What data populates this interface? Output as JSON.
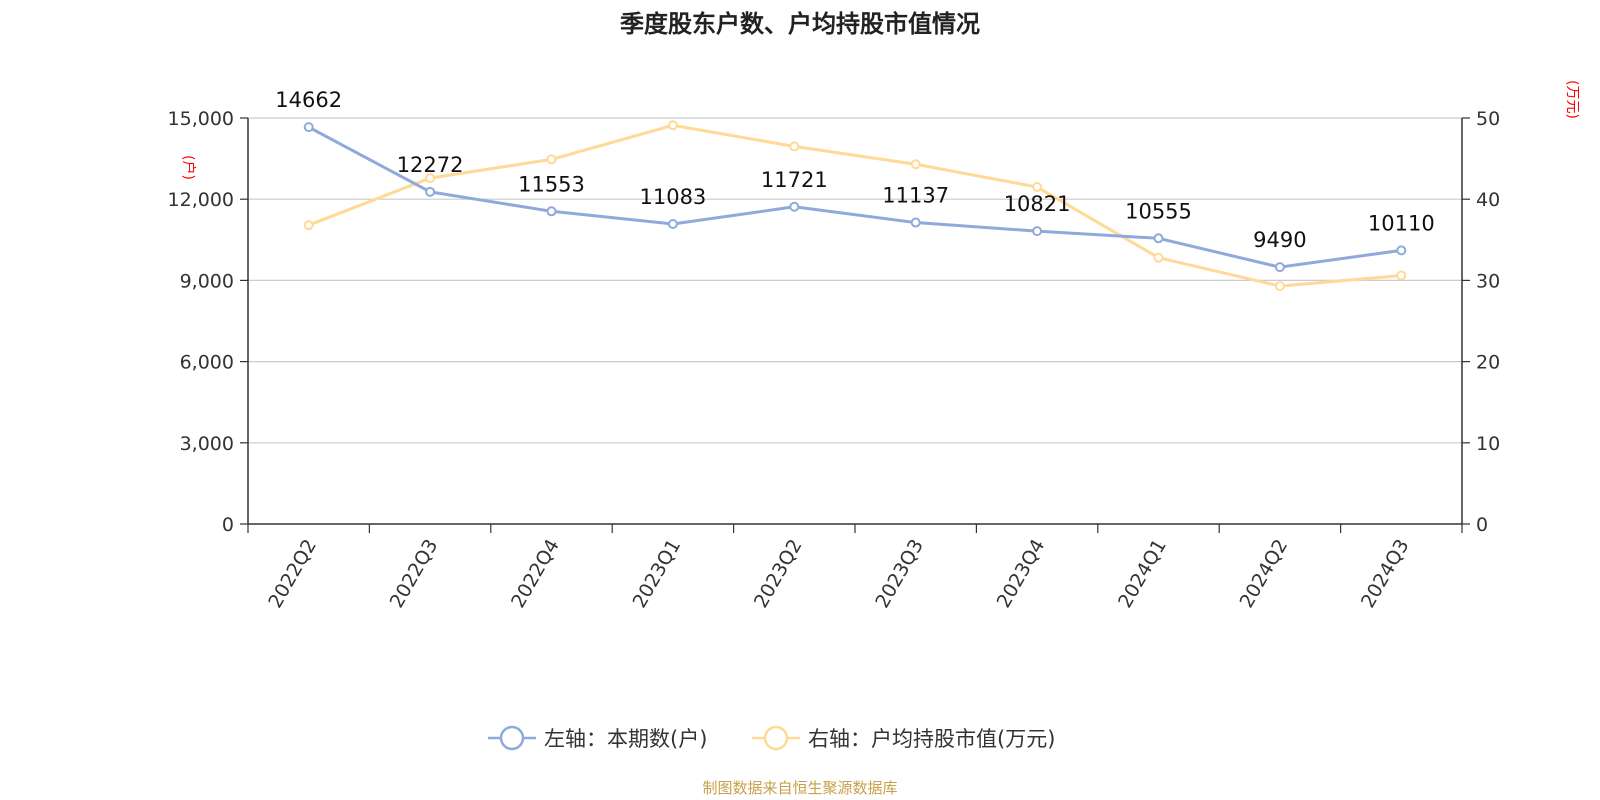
{
  "chart_data": {
    "type": "line",
    "title": "季度股东户数、户均持股市值情况",
    "categories": [
      "2022Q2",
      "2022Q3",
      "2022Q4",
      "2023Q1",
      "2023Q2",
      "2023Q3",
      "2023Q4",
      "2024Q1",
      "2024Q2",
      "2024Q3"
    ],
    "left_axis": {
      "unit": "(户)",
      "ylim": [
        0,
        15000
      ],
      "ticks": [
        "0",
        "3,000",
        "6,000",
        "9,000",
        "12,000",
        "15,000"
      ]
    },
    "right_axis": {
      "unit": "(万元)",
      "ylim": [
        0,
        50
      ],
      "ticks": [
        "0",
        "10",
        "20",
        "30",
        "40",
        "50"
      ]
    },
    "series": [
      {
        "name": "左轴：本期数(户)",
        "axis": "left",
        "color": "#8eaadb",
        "values": [
          14662,
          12272,
          11553,
          11083,
          11721,
          11137,
          10821,
          10555,
          9490,
          10110
        ],
        "labels": [
          "14662",
          "12272",
          "11553",
          "11083",
          "11721",
          "11137",
          "10821",
          "10555",
          "9490",
          "10110"
        ]
      },
      {
        "name": "右轴：户均持股市值(万元)",
        "axis": "right",
        "color": "#ffd996",
        "values": [
          36.8,
          42.6,
          44.9,
          49.1,
          46.5,
          44.3,
          41.5,
          32.8,
          29.3,
          30.6
        ]
      }
    ],
    "grid": true,
    "legend": "bottom-center",
    "source": "制图数据来自恒生聚源数据库"
  }
}
